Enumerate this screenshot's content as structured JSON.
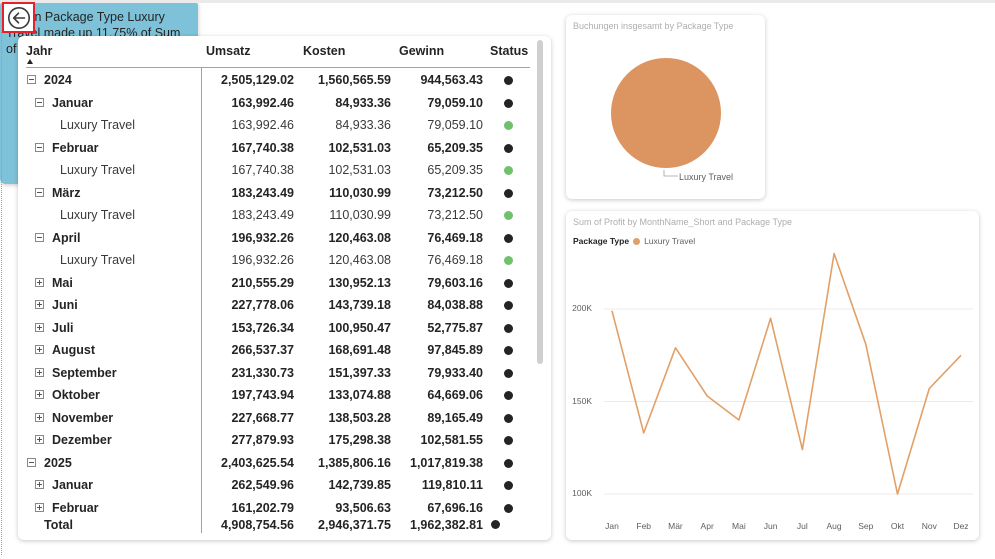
{
  "colors": {
    "accent_teal": "#5fbeb6",
    "status_dark": "#252423",
    "status_green": "#70c16c",
    "pie_orange": "#dc9460",
    "line_orange": "#e2a067",
    "narrative_bg": "#7dc2d9",
    "back_border": "#e8202a"
  },
  "back_button": {
    "icon": "arrow-left-circle-icon"
  },
  "matrix": {
    "headers": {
      "jahr": "Jahr",
      "umsatz": "Umsatz",
      "kosten": "Kosten",
      "gewinn": "Gewinn",
      "status": "Status"
    },
    "rows": [
      {
        "level": 0,
        "toggle": "minus",
        "label": "2024",
        "umsatz": "2,505,129.02",
        "kosten": "1,560,565.59",
        "gewinn": "944,563.43",
        "status": "dark"
      },
      {
        "level": 1,
        "toggle": "minus",
        "label": "Januar",
        "umsatz": "163,992.46",
        "kosten": "84,933.36",
        "gewinn": "79,059.10",
        "status": "dark"
      },
      {
        "level": 2,
        "toggle": "none",
        "label": "Luxury Travel",
        "umsatz": "163,992.46",
        "kosten": "84,933.36",
        "gewinn": "79,059.10",
        "status": "green"
      },
      {
        "level": 1,
        "toggle": "minus",
        "label": "Februar",
        "umsatz": "167,740.38",
        "kosten": "102,531.03",
        "gewinn": "65,209.35",
        "status": "dark"
      },
      {
        "level": 2,
        "toggle": "none",
        "label": "Luxury Travel",
        "umsatz": "167,740.38",
        "kosten": "102,531.03",
        "gewinn": "65,209.35",
        "status": "green"
      },
      {
        "level": 1,
        "toggle": "minus",
        "label": "März",
        "umsatz": "183,243.49",
        "kosten": "110,030.99",
        "gewinn": "73,212.50",
        "status": "dark"
      },
      {
        "level": 2,
        "toggle": "none",
        "label": "Luxury Travel",
        "umsatz": "183,243.49",
        "kosten": "110,030.99",
        "gewinn": "73,212.50",
        "status": "green"
      },
      {
        "level": 1,
        "toggle": "minus",
        "label": "April",
        "umsatz": "196,932.26",
        "kosten": "120,463.08",
        "gewinn": "76,469.18",
        "status": "dark"
      },
      {
        "level": 2,
        "toggle": "none",
        "label": "Luxury Travel",
        "umsatz": "196,932.26",
        "kosten": "120,463.08",
        "gewinn": "76,469.18",
        "status": "green"
      },
      {
        "level": 1,
        "toggle": "plus",
        "label": "Mai",
        "umsatz": "210,555.29",
        "kosten": "130,952.13",
        "gewinn": "79,603.16",
        "status": "dark"
      },
      {
        "level": 1,
        "toggle": "plus",
        "label": "Juni",
        "umsatz": "227,778.06",
        "kosten": "143,739.18",
        "gewinn": "84,038.88",
        "status": "dark"
      },
      {
        "level": 1,
        "toggle": "plus",
        "label": "Juli",
        "umsatz": "153,726.34",
        "kosten": "100,950.47",
        "gewinn": "52,775.87",
        "status": "dark"
      },
      {
        "level": 1,
        "toggle": "plus",
        "label": "August",
        "umsatz": "266,537.37",
        "kosten": "168,691.48",
        "gewinn": "97,845.89",
        "status": "dark"
      },
      {
        "level": 1,
        "toggle": "plus",
        "label": "September",
        "umsatz": "231,330.73",
        "kosten": "151,397.33",
        "gewinn": "79,933.40",
        "status": "dark"
      },
      {
        "level": 1,
        "toggle": "plus",
        "label": "Oktober",
        "umsatz": "197,743.94",
        "kosten": "133,074.88",
        "gewinn": "64,669.06",
        "status": "dark"
      },
      {
        "level": 1,
        "toggle": "plus",
        "label": "November",
        "umsatz": "227,668.77",
        "kosten": "138,503.28",
        "gewinn": "89,165.49",
        "status": "dark"
      },
      {
        "level": 1,
        "toggle": "plus",
        "label": "Dezember",
        "umsatz": "277,879.93",
        "kosten": "175,298.38",
        "gewinn": "102,581.55",
        "status": "dark"
      },
      {
        "level": 0,
        "toggle": "minus",
        "label": "2025",
        "umsatz": "2,403,625.54",
        "kosten": "1,385,806.16",
        "gewinn": "1,017,819.38",
        "status": "dark"
      },
      {
        "level": 1,
        "toggle": "plus",
        "label": "Januar",
        "umsatz": "262,549.96",
        "kosten": "142,739.85",
        "gewinn": "119,810.11",
        "status": "dark"
      },
      {
        "level": 1,
        "toggle": "plus",
        "label": "Februar",
        "umsatz": "161,202.79",
        "kosten": "93,506.63",
        "gewinn": "67,696.16",
        "status": "dark"
      }
    ],
    "total": {
      "label": "Total",
      "umsatz": "4,908,754.56",
      "kosten": "2,946,371.75",
      "gewinn": "1,962,382.81",
      "status": "dark"
    }
  },
  "pie": {
    "title": "Buchungen insgesamt by Package Type",
    "slice_label": "Luxury Travel"
  },
  "narrative": {
    "part1": "Aug in Package Type Luxury Travel made up ",
    "highlight": "11.75%",
    "part2": " of Sum of Profit."
  },
  "line": {
    "title": "Sum of Profit by MonthName_Short and Package Type",
    "legend_title": "Package Type",
    "legend_item": "Luxury Travel"
  },
  "chart_data": [
    {
      "type": "pie",
      "title": "Buchungen insgesamt by Package Type",
      "categories": [
        "Luxury Travel"
      ],
      "values": [
        100
      ]
    },
    {
      "type": "line",
      "title": "Sum of Profit by MonthName_Short and Package Type",
      "categories": [
        "Jan",
        "Feb",
        "Mär",
        "Apr",
        "Mai",
        "Jun",
        "Jul",
        "Aug",
        "Sep",
        "Okt",
        "Nov",
        "Dez"
      ],
      "series": [
        {
          "name": "Luxury Travel",
          "values": [
            199000,
            133000,
            179000,
            153000,
            140000,
            195000,
            124000,
            230000,
            181000,
            100000,
            157000,
            175000
          ]
        }
      ],
      "yticks": [
        "100K",
        "150K",
        "200K"
      ],
      "ylim": [
        80000,
        240000
      ],
      "grid": true,
      "legend": "top-left"
    }
  ]
}
